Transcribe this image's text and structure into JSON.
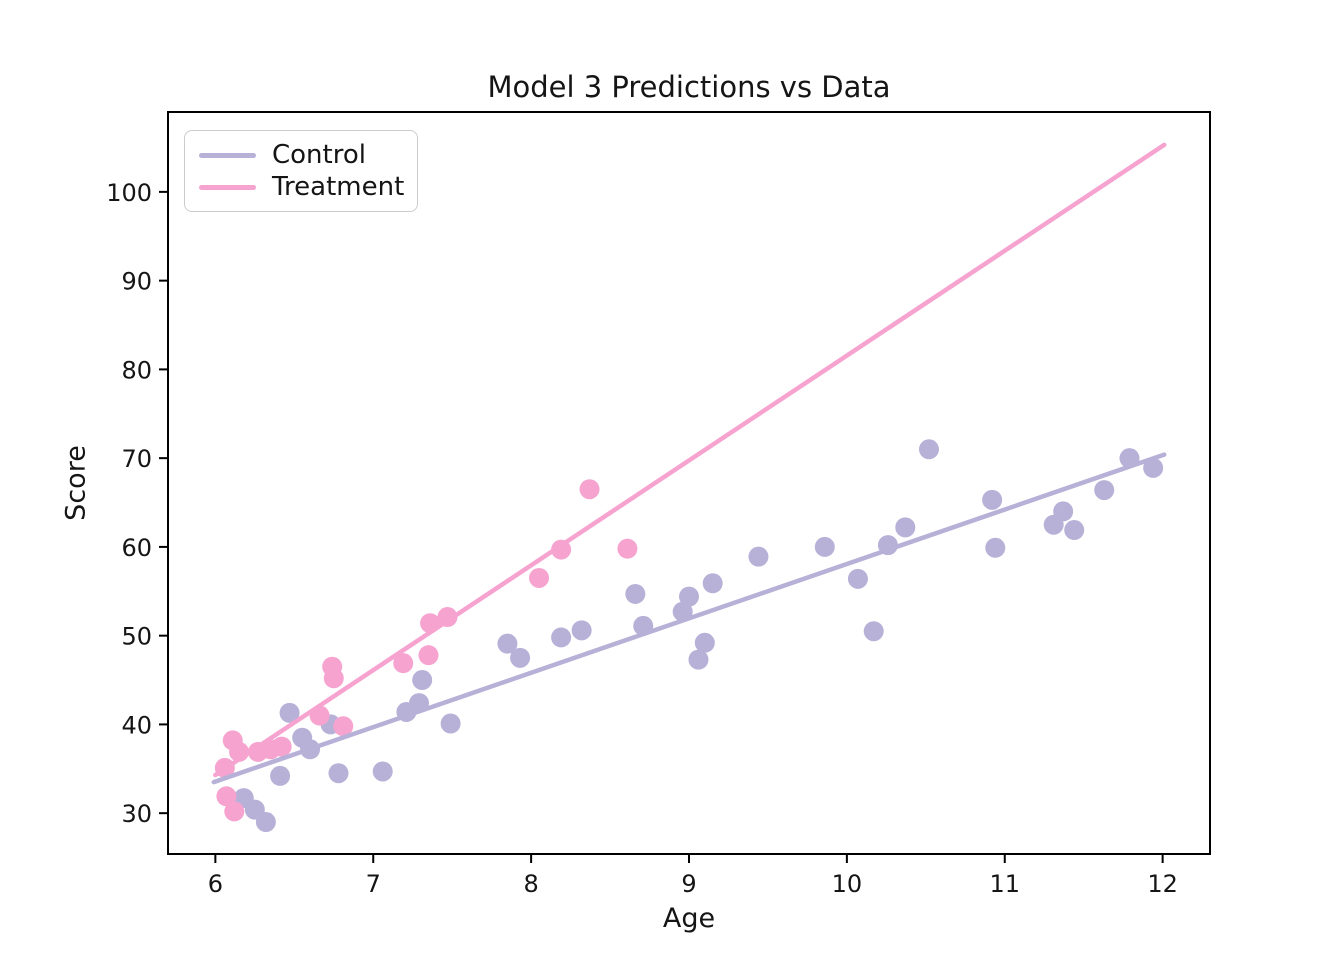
{
  "figure": {
    "title": "Model 3 Predictions vs Data",
    "xlabel": "Age",
    "ylabel": "Score",
    "legend": [
      {
        "label": "Control",
        "color": "#b7b1d8"
      },
      {
        "label": "Treatment",
        "color": "#f6a3d0"
      }
    ],
    "frame_color": "#000000",
    "text_color": "#151515"
  },
  "chart_data": {
    "type": "scatter",
    "title": "Model 3 Predictions vs Data",
    "xlabel": "Age",
    "ylabel": "Score",
    "xlim": [
      5.7,
      12.3
    ],
    "ylim": [
      25.4,
      109.0
    ],
    "xticks": [
      6,
      7,
      8,
      9,
      10,
      11,
      12
    ],
    "yticks": [
      30,
      40,
      50,
      60,
      70,
      80,
      90,
      100
    ],
    "grid": false,
    "legend_position": "upper left",
    "series": [
      {
        "name": "Control",
        "type": "scatter",
        "color": "#b7b1d8",
        "points": [
          [
            6.18,
            31.7
          ],
          [
            6.25,
            30.4
          ],
          [
            6.32,
            29.0
          ],
          [
            6.41,
            34.2
          ],
          [
            6.47,
            41.3
          ],
          [
            6.55,
            38.5
          ],
          [
            6.6,
            37.2
          ],
          [
            6.73,
            40.0
          ],
          [
            6.78,
            34.5
          ],
          [
            7.06,
            34.7
          ],
          [
            7.21,
            41.4
          ],
          [
            7.29,
            42.4
          ],
          [
            7.31,
            45.0
          ],
          [
            7.49,
            40.1
          ],
          [
            7.85,
            49.1
          ],
          [
            7.93,
            47.5
          ],
          [
            8.19,
            49.8
          ],
          [
            8.32,
            50.6
          ],
          [
            8.66,
            54.7
          ],
          [
            8.71,
            51.1
          ],
          [
            8.96,
            52.7
          ],
          [
            9.0,
            54.4
          ],
          [
            9.06,
            47.3
          ],
          [
            9.1,
            49.2
          ],
          [
            9.15,
            55.9
          ],
          [
            9.44,
            58.9
          ],
          [
            9.86,
            60.0
          ],
          [
            10.07,
            56.4
          ],
          [
            10.17,
            50.5
          ],
          [
            10.26,
            60.2
          ],
          [
            10.37,
            62.2
          ],
          [
            10.52,
            71.0
          ],
          [
            10.92,
            65.3
          ],
          [
            10.94,
            59.9
          ],
          [
            11.31,
            62.5
          ],
          [
            11.37,
            64.0
          ],
          [
            11.44,
            61.9
          ],
          [
            11.63,
            66.4
          ],
          [
            11.79,
            70.0
          ],
          [
            11.94,
            68.9
          ]
        ]
      },
      {
        "name": "Treatment",
        "type": "scatter",
        "color": "#f6a3d0",
        "points": [
          [
            6.06,
            35.1
          ],
          [
            6.07,
            31.9
          ],
          [
            6.11,
            38.2
          ],
          [
            6.12,
            30.2
          ],
          [
            6.15,
            36.9
          ],
          [
            6.27,
            36.9
          ],
          [
            6.35,
            37.2
          ],
          [
            6.42,
            37.5
          ],
          [
            6.66,
            41.0
          ],
          [
            6.74,
            46.5
          ],
          [
            6.75,
            45.2
          ],
          [
            6.81,
            39.8
          ],
          [
            7.19,
            46.9
          ],
          [
            7.35,
            47.8
          ],
          [
            7.36,
            51.4
          ],
          [
            7.47,
            52.1
          ],
          [
            8.05,
            56.5
          ],
          [
            8.19,
            59.7
          ],
          [
            8.37,
            66.5
          ],
          [
            8.61,
            59.8
          ]
        ]
      },
      {
        "name": "Control fit line",
        "type": "line",
        "color": "#b7b1d8",
        "x": [
          5.99,
          12.01
        ],
        "y": [
          33.5,
          70.4
        ]
      },
      {
        "name": "Treatment fit line",
        "type": "line",
        "color": "#f6a3d0",
        "x": [
          6.0,
          12.01
        ],
        "y": [
          34.3,
          105.3
        ]
      }
    ]
  }
}
